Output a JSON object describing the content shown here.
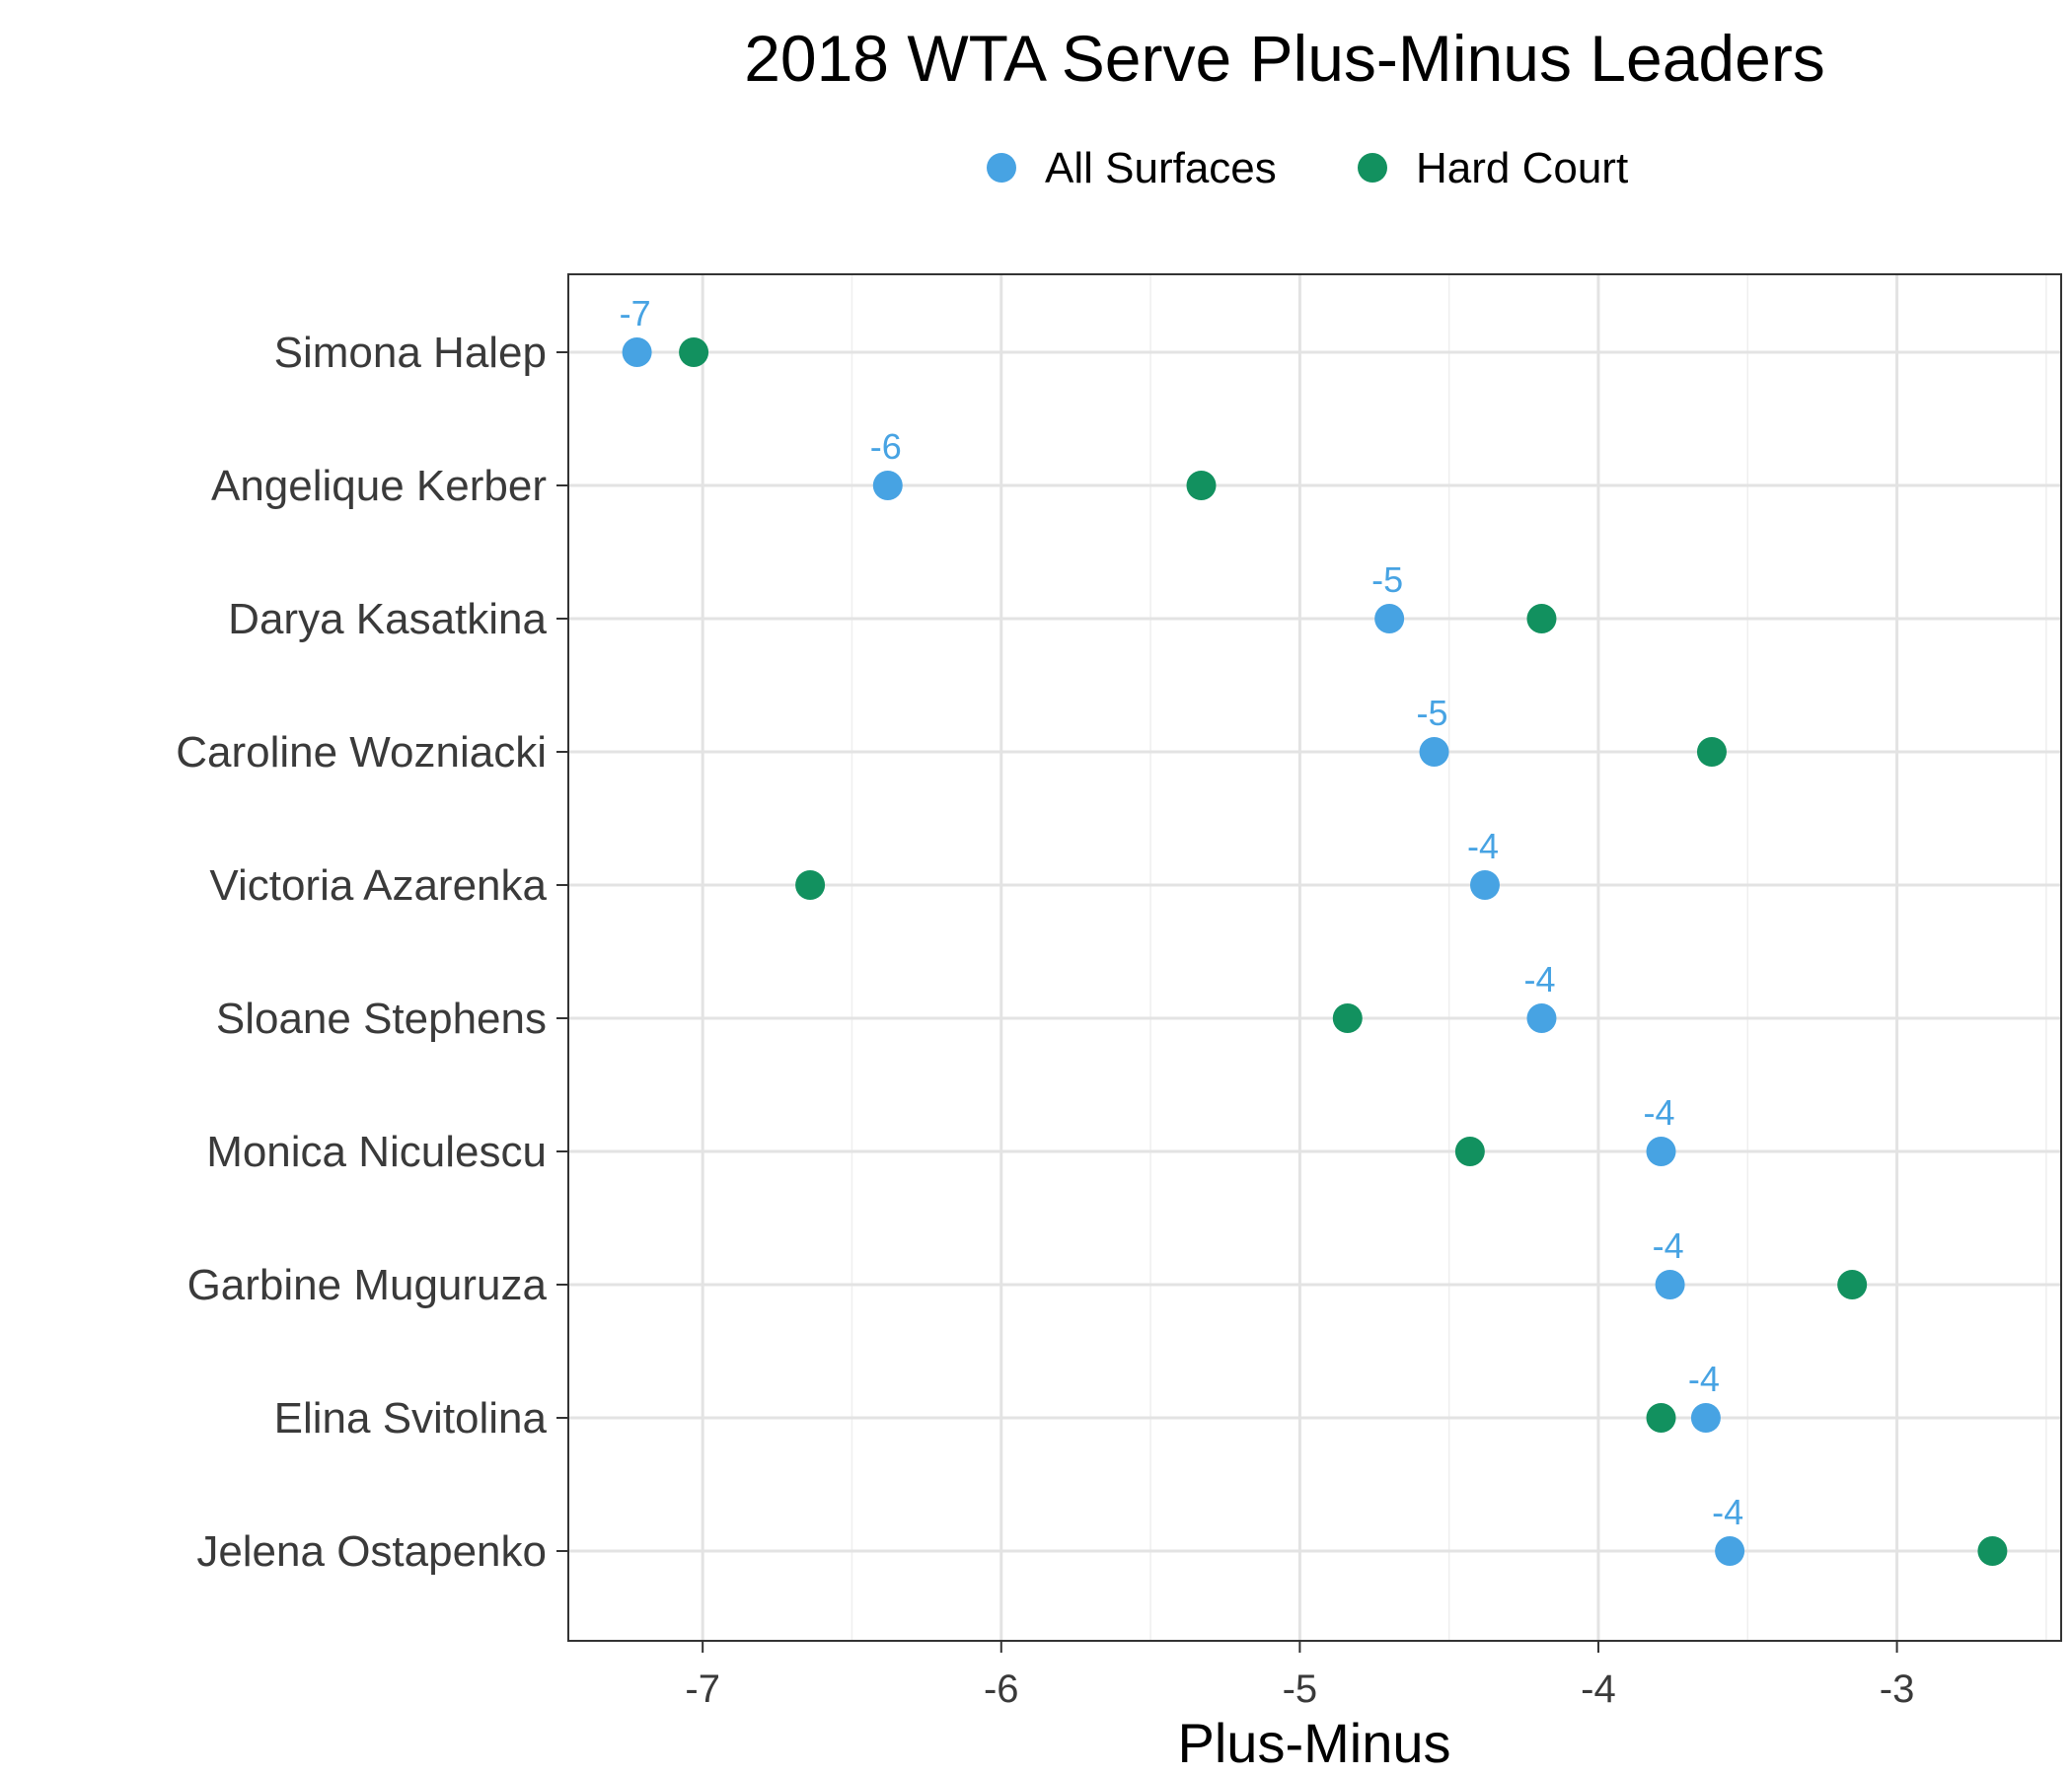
{
  "chart_data": {
    "type": "scatter",
    "title": "2018 WTA Serve Plus-Minus Leaders",
    "xlabel": "Plus-Minus",
    "ylabel": "",
    "xlim": [
      -7.45,
      -2.45
    ],
    "xticks": [
      -7,
      -6,
      -5,
      -4,
      -3
    ],
    "grid": true,
    "legend_position": "top",
    "categories": [
      "Simona Halep",
      "Angelique Kerber",
      "Darya Kasatkina",
      "Caroline Wozniacki",
      "Victoria Azarenka",
      "Sloane Stephens",
      "Monica Niculescu",
      "Garbine Muguruza",
      "Elina Svitolina",
      "Jelena Ostapenko"
    ],
    "series": [
      {
        "name": "All Surfaces",
        "color": "#47a3e3",
        "values": [
          -7.22,
          -6.38,
          -4.7,
          -4.55,
          -4.38,
          -4.19,
          -3.79,
          -3.76,
          -3.64,
          -3.56
        ],
        "labels": [
          "-7",
          "-6",
          "-5",
          "-5",
          "-4",
          "-4",
          "-4",
          "-4",
          "-4",
          "-4"
        ]
      },
      {
        "name": "Hard Court",
        "color": "#12915f",
        "values": [
          -7.03,
          -5.33,
          -4.19,
          -3.62,
          -6.64,
          -4.84,
          -4.43,
          -3.15,
          -3.79,
          -2.68
        ]
      }
    ]
  }
}
